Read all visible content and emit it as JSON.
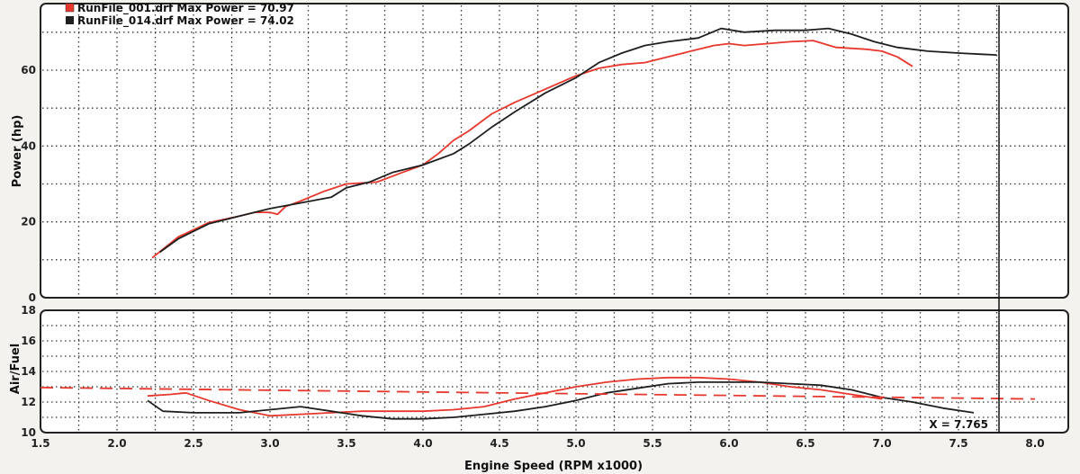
{
  "chart_data": [
    {
      "type": "line",
      "title": "",
      "xlabel": "Engine Speed (RPM x1000)",
      "ylabel": "Power (hp)",
      "xlim": [
        1.5,
        8.0
      ],
      "ylim": [
        0,
        75
      ],
      "yticks": [
        0,
        20,
        40,
        60
      ],
      "grid": true,
      "legend_position": "top-left",
      "series": [
        {
          "name": "RunFile_001.drf Max Power = 70.97",
          "color": "#e8372c",
          "x": [
            2.23,
            2.4,
            2.6,
            2.8,
            2.9,
            3.0,
            3.05,
            3.1,
            3.2,
            3.35,
            3.5,
            3.7,
            3.85,
            4.0,
            4.1,
            4.2,
            4.3,
            4.45,
            4.6,
            4.8,
            5.0,
            5.15,
            5.3,
            5.45,
            5.6,
            5.75,
            5.9,
            6.0,
            6.1,
            6.25,
            6.4,
            6.55,
            6.7,
            6.9,
            7.0,
            7.1,
            7.2
          ],
          "y": [
            10.5,
            16,
            19.8,
            21.5,
            22.5,
            22.5,
            22,
            24,
            25.5,
            28,
            30,
            30.5,
            32.8,
            35,
            38,
            41.5,
            44,
            48.5,
            51.5,
            55,
            58.5,
            60.5,
            61.5,
            62,
            63.5,
            65,
            66.5,
            67,
            66.5,
            67,
            67.5,
            67.8,
            66,
            65.5,
            65,
            63.5,
            61
          ]
        },
        {
          "name": "RunFile_014.drf Max Power = 74.02",
          "color": "#1f1f1f",
          "x": [
            2.28,
            2.4,
            2.6,
            2.8,
            3.0,
            3.2,
            3.4,
            3.5,
            3.65,
            3.8,
            4.0,
            4.1,
            4.2,
            4.3,
            4.45,
            4.6,
            4.8,
            5.0,
            5.15,
            5.3,
            5.45,
            5.6,
            5.8,
            5.95,
            6.1,
            6.3,
            6.5,
            6.65,
            6.8,
            6.95,
            7.1,
            7.3,
            7.5,
            7.65,
            7.75
          ],
          "y": [
            12,
            15.5,
            19.5,
            21.5,
            23.5,
            25,
            26.5,
            29,
            30.5,
            33,
            35,
            36.5,
            38,
            40.5,
            45,
            49,
            54,
            58,
            62,
            64.5,
            66.5,
            67.5,
            68.5,
            71,
            70,
            70.5,
            70.5,
            71,
            69.5,
            67.5,
            66,
            65,
            64.5,
            64.2,
            64
          ]
        }
      ]
    },
    {
      "type": "line",
      "title": "",
      "xlabel": "Engine Speed (RPM x1000)",
      "ylabel": "Air/Fuel",
      "xlim": [
        1.5,
        8.0
      ],
      "ylim": [
        10,
        18
      ],
      "xticks": [
        1.5,
        2.0,
        2.5,
        3.0,
        3.5,
        4.0,
        4.5,
        5.0,
        5.5,
        6.0,
        6.5,
        7.0,
        7.5,
        8.0
      ],
      "yticks": [
        10,
        12,
        14,
        16,
        18
      ],
      "grid": true,
      "series": [
        {
          "color": "#e8372c",
          "x": [
            2.2,
            2.35,
            2.45,
            2.6,
            2.8,
            3.0,
            3.2,
            3.4,
            3.6,
            3.8,
            4.0,
            4.2,
            4.4,
            4.6,
            4.8,
            5.0,
            5.2,
            5.4,
            5.6,
            5.8,
            6.0,
            6.2,
            6.4,
            6.6,
            6.8,
            7.0
          ],
          "y": [
            12.4,
            12.5,
            12.6,
            12.1,
            11.5,
            11.1,
            11.2,
            11.3,
            11.4,
            11.4,
            11.4,
            11.5,
            11.7,
            12.2,
            12.6,
            13.0,
            13.3,
            13.5,
            13.6,
            13.6,
            13.5,
            13.3,
            13.0,
            12.8,
            12.5,
            12.2
          ]
        },
        {
          "color": "#1f1f1f",
          "x": [
            2.2,
            2.3,
            2.5,
            2.8,
            3.0,
            3.2,
            3.4,
            3.6,
            3.8,
            4.0,
            4.2,
            4.4,
            4.6,
            4.8,
            5.0,
            5.2,
            5.4,
            5.6,
            5.8,
            6.0,
            6.2,
            6.4,
            6.6,
            6.8,
            7.0,
            7.2,
            7.4,
            7.6
          ],
          "y": [
            12.1,
            11.4,
            11.3,
            11.3,
            11.5,
            11.7,
            11.4,
            11.1,
            10.9,
            10.9,
            11.0,
            11.2,
            11.4,
            11.7,
            12.1,
            12.6,
            12.9,
            13.2,
            13.3,
            13.3,
            13.3,
            13.2,
            13.1,
            12.8,
            12.3,
            12.0,
            11.6,
            11.3
          ]
        },
        {
          "style": "dashed",
          "color": "#e8372c",
          "x": [
            1.5,
            8.0
          ],
          "y": [
            12.95,
            12.2
          ]
        }
      ],
      "cursor": {
        "x": 7.765,
        "label": "X = 7.765"
      }
    }
  ]
}
